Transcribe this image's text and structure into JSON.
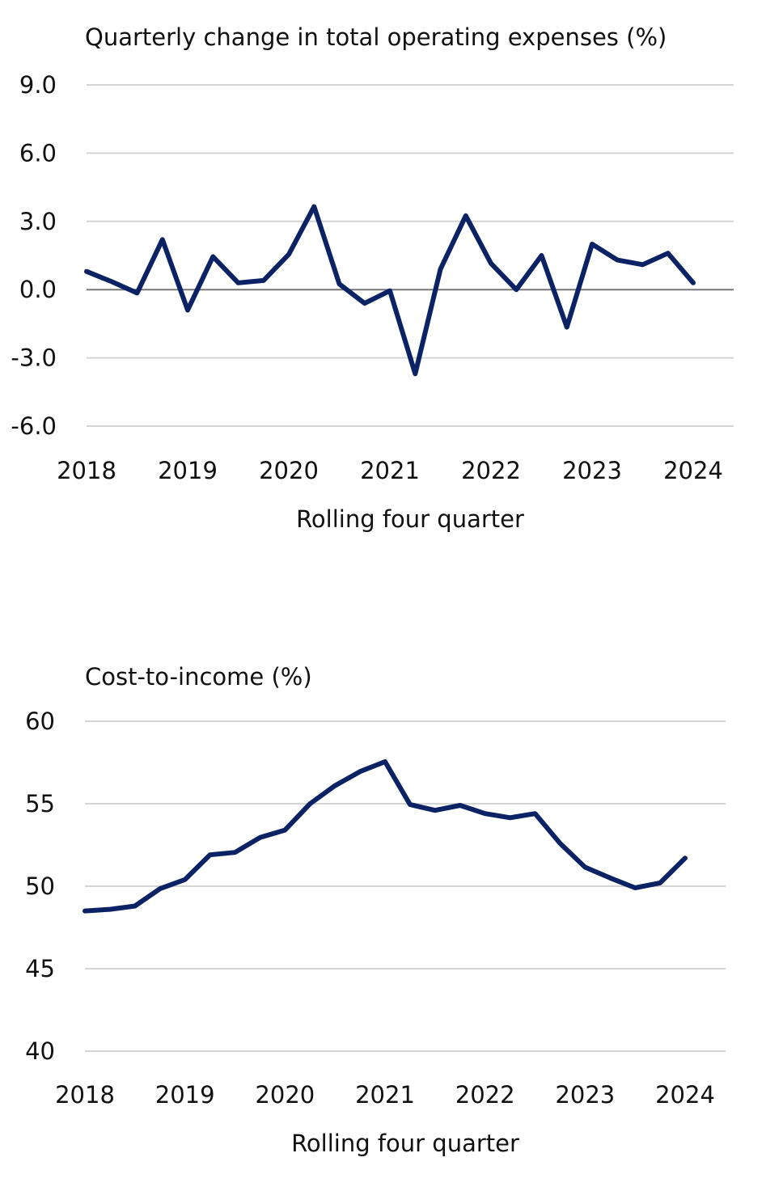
{
  "colors": {
    "line": "#0b2265",
    "grid": "#d4d4d4",
    "zero": "#777777"
  },
  "chart_data": [
    {
      "type": "line",
      "title": "Quarterly change in total operating expenses (%)",
      "xlabel": "Rolling four quarter",
      "ylabel": "",
      "ylim": [
        -6,
        9
      ],
      "yticks": [
        "9.0",
        "6.0",
        "3.0",
        "0.0",
        "-3.0",
        "-6.0"
      ],
      "ytick_values": [
        9,
        6,
        3,
        0,
        -3,
        -6
      ],
      "xticks": [
        "2018",
        "2019",
        "2020",
        "2021",
        "2022",
        "2023",
        "2024"
      ],
      "xlim": [
        2018,
        2024.25
      ],
      "grid": true,
      "x": [
        2018,
        2018.25,
        2018.5,
        2018.75,
        2019,
        2019.25,
        2019.5,
        2019.75,
        2020,
        2020.25,
        2020.5,
        2020.75,
        2021,
        2021.25,
        2021.5,
        2021.75,
        2022,
        2022.25,
        2022.5,
        2022.75,
        2023,
        2023.25,
        2023.5,
        2023.75,
        2024
      ],
      "values": [
        0.8,
        0.35,
        -0.15,
        2.2,
        -0.9,
        1.45,
        0.3,
        0.4,
        1.55,
        3.65,
        0.25,
        -0.6,
        -0.05,
        -3.7,
        0.9,
        3.25,
        1.15,
        0.0,
        1.5,
        -1.65,
        2.0,
        1.3,
        1.1,
        1.6,
        0.3
      ]
    },
    {
      "type": "line",
      "title": "Cost-to-income (%)",
      "xlabel": "Rolling four quarter",
      "ylabel": "",
      "ylim": [
        40,
        60
      ],
      "yticks": [
        "60",
        "55",
        "50",
        "45",
        "40"
      ],
      "ytick_values": [
        60,
        55,
        50,
        45,
        40
      ],
      "xticks": [
        "2018",
        "2019",
        "2020",
        "2021",
        "2022",
        "2023",
        "2024"
      ],
      "xlim": [
        2018,
        2024.4
      ],
      "grid": true,
      "x": [
        2018,
        2018.25,
        2018.5,
        2018.75,
        2019,
        2019.25,
        2019.5,
        2019.75,
        2020,
        2020.25,
        2020.5,
        2020.75,
        2021,
        2021.25,
        2021.5,
        2021.75,
        2022,
        2022.25,
        2022.5,
        2022.75,
        2023,
        2023.25,
        2023.5,
        2023.75,
        2024
      ],
      "values": [
        48.5,
        48.6,
        48.8,
        49.85,
        50.4,
        51.9,
        52.05,
        52.95,
        53.4,
        55.0,
        56.1,
        56.95,
        57.55,
        54.95,
        54.6,
        54.9,
        54.4,
        54.15,
        54.4,
        52.6,
        51.15,
        50.5,
        49.9,
        50.2,
        51.7
      ]
    }
  ]
}
